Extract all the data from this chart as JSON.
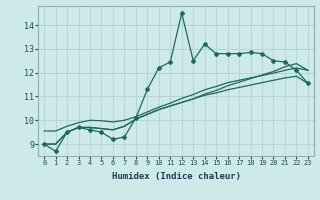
{
  "xlabel": "Humidex (Indice chaleur)",
  "ylabel": "",
  "bg_color": "#ceeae8",
  "grid_color": "#b8d4d2",
  "line_color": "#1a6b5a",
  "xlim": [
    -0.5,
    23.5
  ],
  "ylim": [
    8.5,
    14.8
  ],
  "yticks": [
    9,
    10,
    11,
    12,
    13,
    14
  ],
  "xticks": [
    0,
    1,
    2,
    3,
    4,
    5,
    6,
    7,
    8,
    9,
    10,
    11,
    12,
    13,
    14,
    15,
    16,
    17,
    18,
    19,
    20,
    21,
    22,
    23
  ],
  "hours": [
    0,
    1,
    2,
    3,
    4,
    5,
    6,
    7,
    8,
    9,
    10,
    11,
    12,
    13,
    14,
    15,
    16,
    17,
    18,
    19,
    20,
    21,
    22,
    23
  ],
  "zigzag": [
    9.0,
    8.7,
    9.5,
    9.7,
    9.6,
    9.5,
    9.2,
    9.3,
    10.1,
    11.3,
    12.2,
    12.45,
    14.5,
    12.5,
    13.2,
    12.8,
    12.8,
    12.8,
    12.85,
    12.8,
    12.5,
    12.45,
    12.1,
    11.55
  ],
  "line1": [
    9.0,
    9.0,
    9.5,
    9.7,
    9.7,
    9.65,
    9.6,
    9.75,
    10.05,
    10.25,
    10.45,
    10.6,
    10.75,
    10.9,
    11.05,
    11.15,
    11.28,
    11.38,
    11.48,
    11.58,
    11.68,
    11.78,
    11.85,
    11.55
  ],
  "line2": [
    9.0,
    9.0,
    9.5,
    9.7,
    9.7,
    9.65,
    9.6,
    9.75,
    10.05,
    10.25,
    10.45,
    10.6,
    10.75,
    10.9,
    11.1,
    11.25,
    11.45,
    11.6,
    11.75,
    11.9,
    12.05,
    12.25,
    12.38,
    12.1
  ],
  "line3": [
    9.55,
    9.55,
    9.75,
    9.9,
    10.0,
    9.98,
    9.93,
    10.0,
    10.15,
    10.35,
    10.55,
    10.72,
    10.92,
    11.08,
    11.28,
    11.42,
    11.58,
    11.68,
    11.78,
    11.88,
    11.98,
    12.1,
    12.2,
    12.1
  ]
}
